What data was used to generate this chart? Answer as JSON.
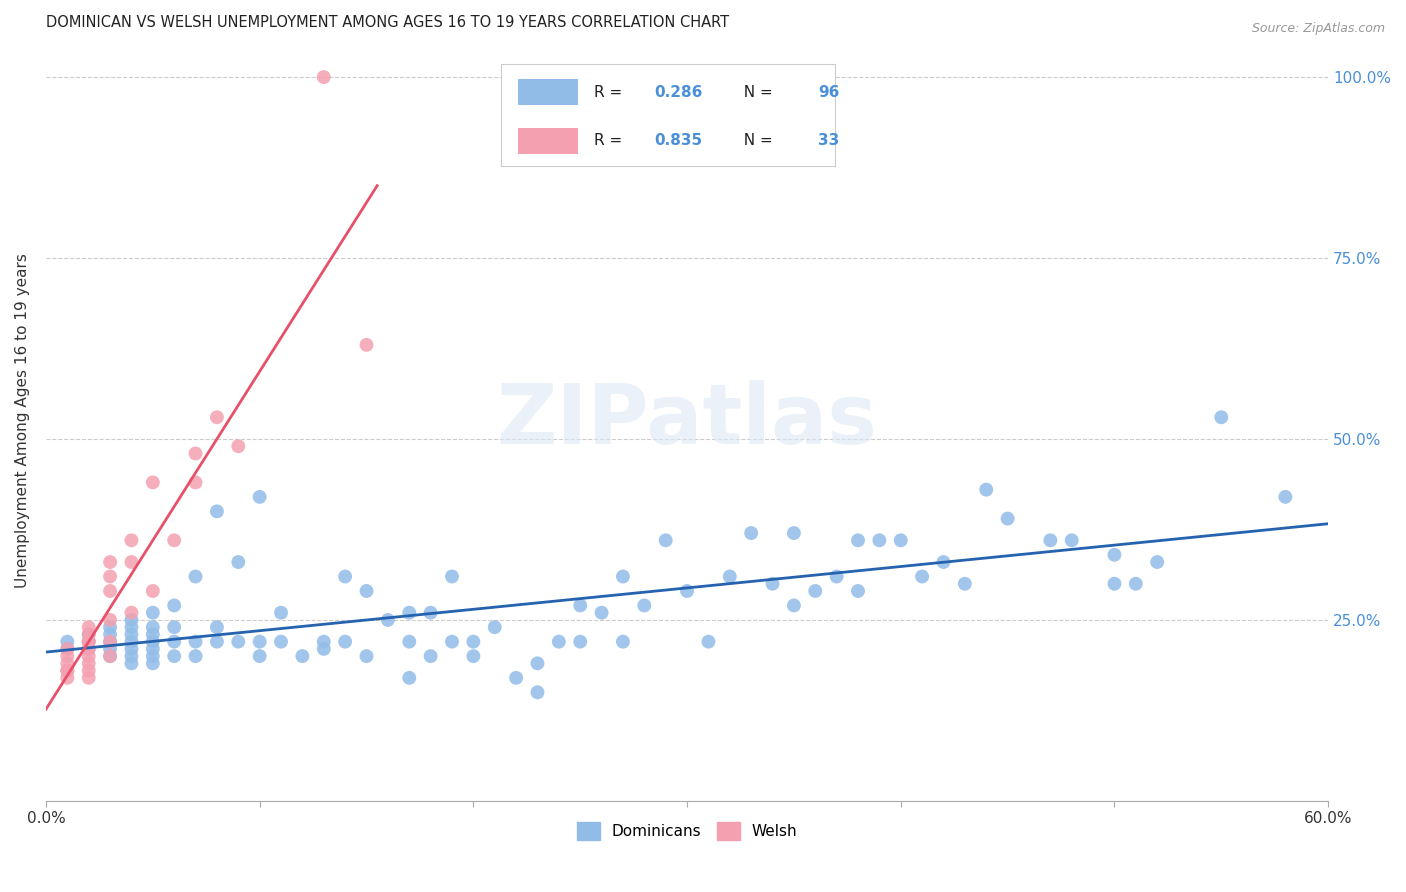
{
  "title": "DOMINICAN VS WELSH UNEMPLOYMENT AMONG AGES 16 TO 19 YEARS CORRELATION CHART",
  "source": "Source: ZipAtlas.com",
  "ylabel": "Unemployment Among Ages 16 to 19 years",
  "xlim": [
    0.0,
    0.6
  ],
  "ylim": [
    0.0,
    1.05
  ],
  "xticks": [
    0.0,
    0.1,
    0.2,
    0.3,
    0.4,
    0.5,
    0.6
  ],
  "xticklabels": [
    "0.0%",
    "",
    "",
    "",
    "",
    "",
    "60.0%"
  ],
  "yticks": [
    0.0,
    0.25,
    0.5,
    0.75,
    1.0
  ],
  "yticklabels_right": [
    "",
    "25.0%",
    "50.0%",
    "75.0%",
    "100.0%"
  ],
  "dominicans_R": 0.286,
  "dominicans_N": 96,
  "welsh_R": 0.835,
  "welsh_N": 33,
  "dominicans_color": "#92bce8",
  "welsh_color": "#f4a0b0",
  "trend_dominicans_color": "#2563b0",
  "trend_welsh_color": "#e8506a",
  "background_color": "#ffffff",
  "watermark": "ZIPatlas",
  "dominicans_x": [
    0.01,
    0.01,
    0.02,
    0.02,
    0.02,
    0.03,
    0.03,
    0.03,
    0.03,
    0.03,
    0.04,
    0.04,
    0.04,
    0.04,
    0.04,
    0.04,
    0.04,
    0.05,
    0.05,
    0.05,
    0.05,
    0.05,
    0.05,
    0.05,
    0.06,
    0.06,
    0.06,
    0.06,
    0.07,
    0.07,
    0.07,
    0.08,
    0.08,
    0.08,
    0.09,
    0.09,
    0.1,
    0.1,
    0.1,
    0.11,
    0.11,
    0.12,
    0.13,
    0.13,
    0.14,
    0.14,
    0.15,
    0.15,
    0.16,
    0.17,
    0.17,
    0.17,
    0.18,
    0.18,
    0.19,
    0.19,
    0.2,
    0.2,
    0.21,
    0.22,
    0.23,
    0.23,
    0.24,
    0.25,
    0.25,
    0.26,
    0.27,
    0.27,
    0.28,
    0.29,
    0.3,
    0.31,
    0.32,
    0.33,
    0.34,
    0.35,
    0.35,
    0.36,
    0.37,
    0.38,
    0.38,
    0.39,
    0.4,
    0.41,
    0.42,
    0.43,
    0.44,
    0.45,
    0.47,
    0.48,
    0.5,
    0.5,
    0.51,
    0.52,
    0.55,
    0.58
  ],
  "dominicans_y": [
    0.21,
    0.22,
    0.21,
    0.22,
    0.23,
    0.2,
    0.21,
    0.22,
    0.23,
    0.24,
    0.19,
    0.2,
    0.21,
    0.22,
    0.23,
    0.24,
    0.25,
    0.19,
    0.2,
    0.21,
    0.22,
    0.23,
    0.24,
    0.26,
    0.2,
    0.22,
    0.24,
    0.27,
    0.2,
    0.22,
    0.31,
    0.22,
    0.24,
    0.4,
    0.22,
    0.33,
    0.2,
    0.22,
    0.42,
    0.22,
    0.26,
    0.2,
    0.21,
    0.22,
    0.22,
    0.31,
    0.2,
    0.29,
    0.25,
    0.17,
    0.22,
    0.26,
    0.2,
    0.26,
    0.22,
    0.31,
    0.2,
    0.22,
    0.24,
    0.17,
    0.15,
    0.19,
    0.22,
    0.22,
    0.27,
    0.26,
    0.22,
    0.31,
    0.27,
    0.36,
    0.29,
    0.22,
    0.31,
    0.37,
    0.3,
    0.27,
    0.37,
    0.29,
    0.31,
    0.29,
    0.36,
    0.36,
    0.36,
    0.31,
    0.33,
    0.3,
    0.43,
    0.39,
    0.36,
    0.36,
    0.3,
    0.34,
    0.3,
    0.33,
    0.53,
    0.42
  ],
  "welsh_x": [
    0.01,
    0.01,
    0.01,
    0.01,
    0.01,
    0.01,
    0.02,
    0.02,
    0.02,
    0.02,
    0.02,
    0.02,
    0.02,
    0.02,
    0.02,
    0.03,
    0.03,
    0.03,
    0.03,
    0.03,
    0.03,
    0.04,
    0.04,
    0.04,
    0.05,
    0.05,
    0.06,
    0.07,
    0.07,
    0.08,
    0.09,
    0.13,
    0.15
  ],
  "welsh_y": [
    0.17,
    0.18,
    0.18,
    0.19,
    0.2,
    0.21,
    0.17,
    0.18,
    0.19,
    0.2,
    0.21,
    0.22,
    0.22,
    0.23,
    0.24,
    0.2,
    0.22,
    0.25,
    0.29,
    0.31,
    0.33,
    0.26,
    0.33,
    0.36,
    0.29,
    0.44,
    0.36,
    0.44,
    0.48,
    0.53,
    0.49,
    1.0,
    0.63
  ]
}
